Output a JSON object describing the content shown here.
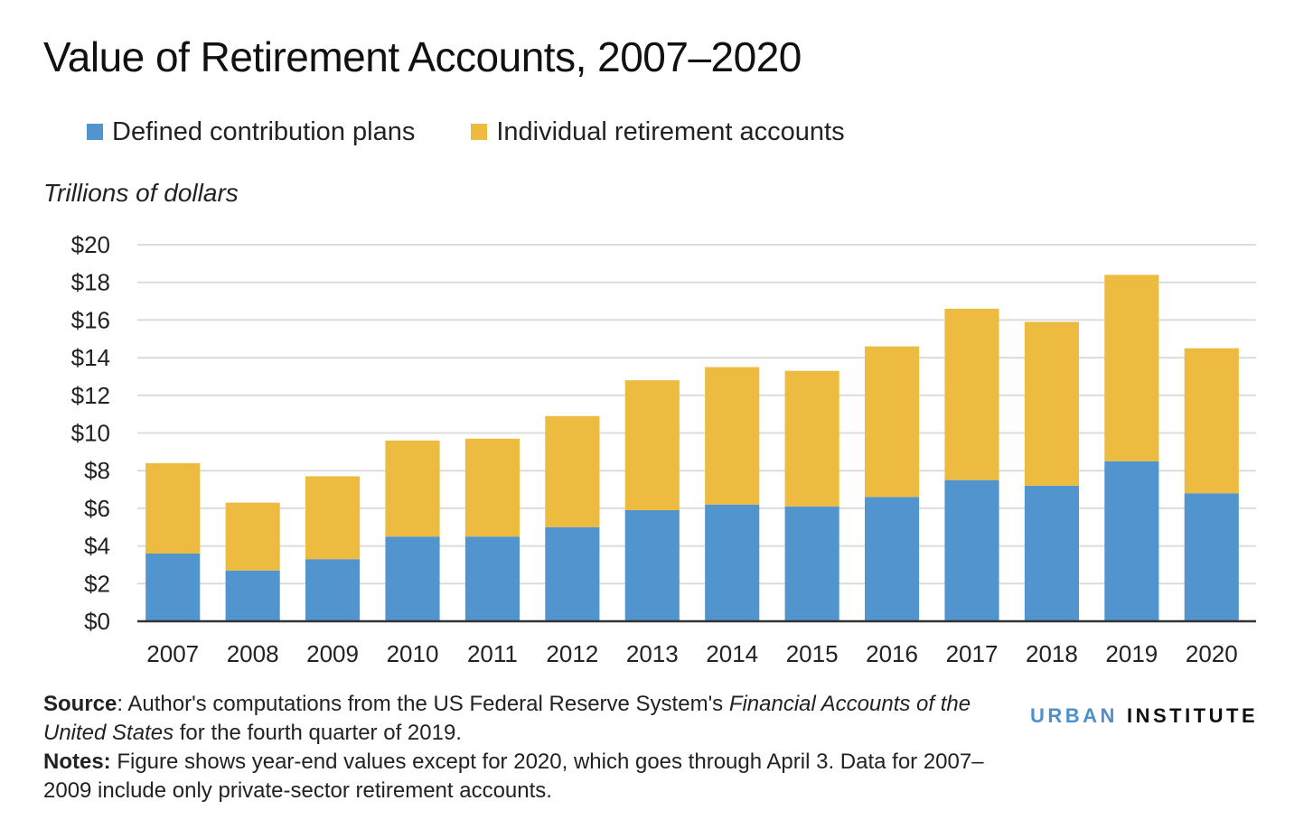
{
  "chart_data": {
    "type": "bar",
    "stacked": true,
    "title": "Value of Retirement Accounts, 2007–2020",
    "ylabel": "Trillions of dollars",
    "xlabel": "",
    "categories": [
      "2007",
      "2008",
      "2009",
      "2010",
      "2011",
      "2012",
      "2013",
      "2014",
      "2015",
      "2016",
      "2017",
      "2018",
      "2019",
      "2020"
    ],
    "series": [
      {
        "name": "Defined contribution plans",
        "color": "#5295ce",
        "values": [
          3.6,
          2.7,
          3.3,
          4.5,
          4.5,
          5.0,
          5.9,
          6.2,
          6.1,
          6.6,
          7.5,
          7.2,
          8.5,
          6.8
        ]
      },
      {
        "name": "Individual retirement accounts",
        "color": "#ecbb3f",
        "values": [
          4.8,
          3.6,
          4.4,
          5.1,
          5.2,
          5.9,
          6.9,
          7.3,
          7.2,
          8.0,
          9.1,
          8.7,
          9.9,
          7.7
        ]
      }
    ],
    "ylim": [
      0,
      20
    ],
    "yticks": [
      0,
      2,
      4,
      6,
      8,
      10,
      12,
      14,
      16,
      18,
      20
    ],
    "ytick_prefix": "$",
    "grid": true,
    "legend": "top-left"
  },
  "footer": {
    "source_label": "Source",
    "source_text_1": ": Author's computations from the US Federal Reserve System's ",
    "source_italic": "Financial Accounts of the United States",
    "source_text_2": " for the fourth quarter of 2019.",
    "notes_label": "Notes:",
    "notes_text": " Figure shows year-end values except for 2020, which goes through April 3. Data for 2007–2009 include only private-sector retirement accounts."
  },
  "logo": {
    "urban": "URBAN",
    "institute": "INSTITUTE"
  }
}
